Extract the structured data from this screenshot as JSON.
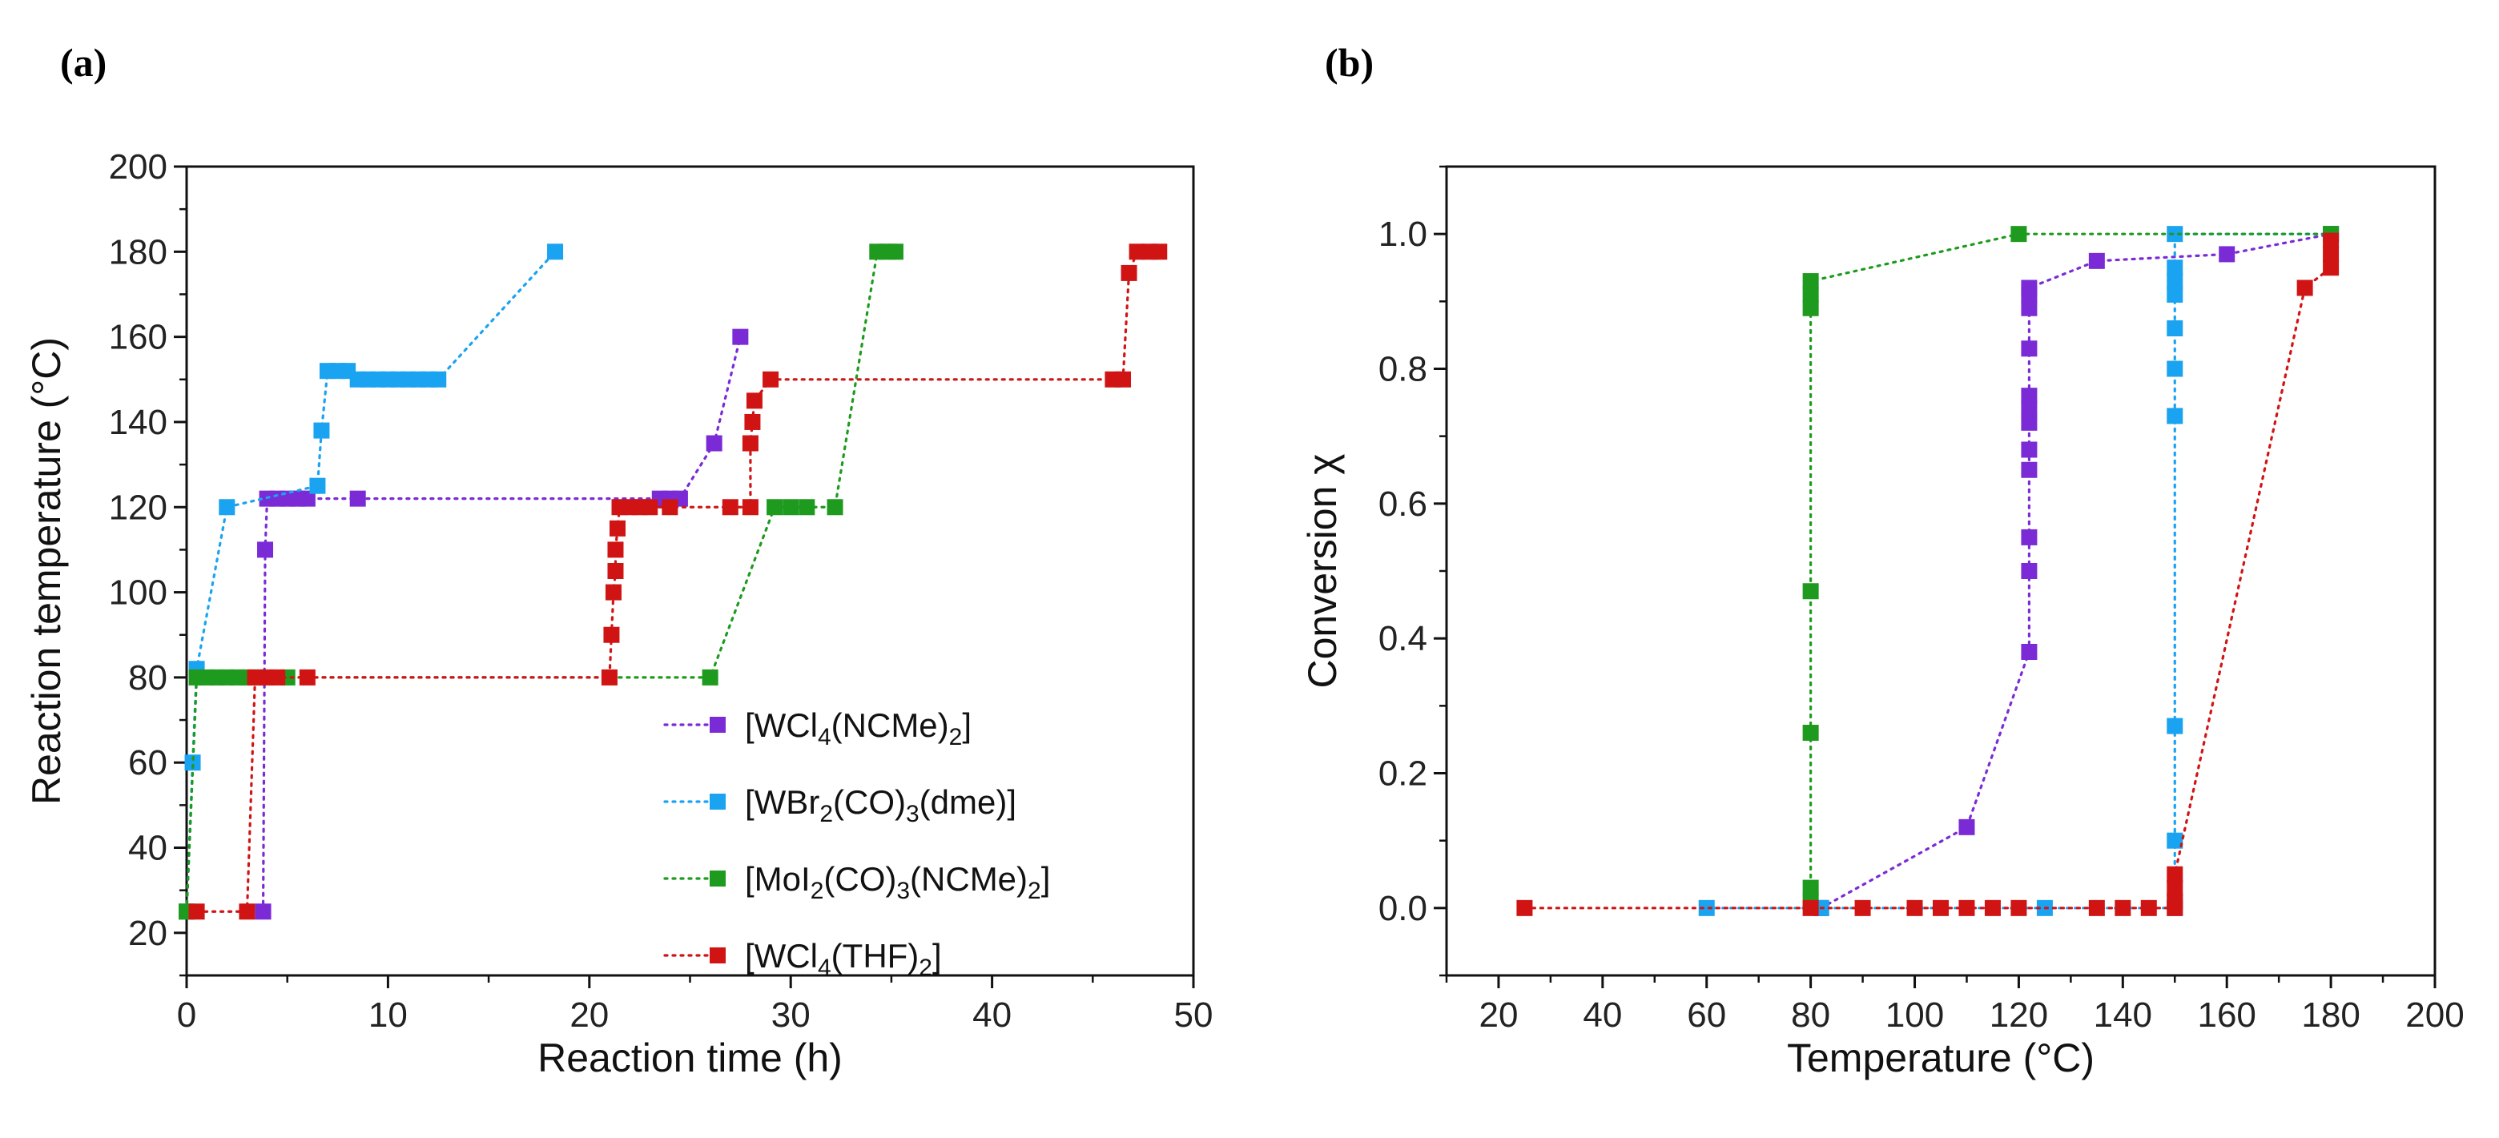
{
  "chart_data": [
    {
      "panel": "(a)",
      "type": "line",
      "xlabel": "Reaction time (h)",
      "ylabel": "Reaction temperature (°C)",
      "xlim": [
        0,
        50
      ],
      "ylim": [
        10,
        200
      ],
      "xticks": [
        0,
        10,
        20,
        30,
        40,
        50
      ],
      "yticks": [
        20,
        40,
        60,
        80,
        100,
        120,
        140,
        160,
        180,
        200
      ],
      "legend_position": "bottom-right",
      "series": [
        {
          "name": "[WCl4(NCMe)2]",
          "legend": [
            "[WCl",
            "4",
            "(NCMe)",
            "2",
            "]"
          ],
          "color": "#7b2bd6",
          "points": [
            [
              3.8,
              25
            ],
            [
              3.9,
              110
            ],
            [
              4.0,
              122
            ],
            [
              4.5,
              122
            ],
            [
              5.0,
              122
            ],
            [
              5.5,
              122
            ],
            [
              6.0,
              122
            ],
            [
              8.5,
              122
            ],
            [
              23.5,
              122
            ],
            [
              24.0,
              122
            ],
            [
              24.5,
              122
            ],
            [
              26.2,
              135
            ],
            [
              27.5,
              160
            ]
          ]
        },
        {
          "name": "[WBr2(CO)3(dme)]",
          "legend": [
            "[WBr",
            "2",
            "(CO)",
            "3",
            "(dme)]"
          ],
          "color": "#1aa3f0",
          "points": [
            [
              0,
              25
            ],
            [
              0.3,
              60
            ],
            [
              0.5,
              82
            ],
            [
              2.0,
              120
            ],
            [
              6.5,
              125
            ],
            [
              6.7,
              138
            ],
            [
              7.0,
              152
            ],
            [
              7.5,
              152
            ],
            [
              8.0,
              152
            ],
            [
              8.5,
              150
            ],
            [
              9.0,
              150
            ],
            [
              9.5,
              150
            ],
            [
              10.0,
              150
            ],
            [
              10.5,
              150
            ],
            [
              11.0,
              150
            ],
            [
              11.5,
              150
            ],
            [
              12.0,
              150
            ],
            [
              12.5,
              150
            ],
            [
              18.3,
              180
            ]
          ]
        },
        {
          "name": "[MoI2(CO)3(NCMe)2]",
          "legend": [
            "[MoI",
            "2",
            "(CO)",
            "3",
            "(NCMe)",
            "2",
            "]"
          ],
          "color": "#1e9a1e",
          "points": [
            [
              0,
              25
            ],
            [
              0.5,
              80
            ],
            [
              1.0,
              80
            ],
            [
              1.5,
              80
            ],
            [
              2.0,
              80
            ],
            [
              2.5,
              80
            ],
            [
              3.0,
              80
            ],
            [
              3.5,
              80
            ],
            [
              5.0,
              80
            ],
            [
              26.0,
              80
            ],
            [
              29.2,
              120
            ],
            [
              30.0,
              120
            ],
            [
              30.8,
              120
            ],
            [
              32.2,
              120
            ],
            [
              34.3,
              180
            ],
            [
              34.8,
              180
            ],
            [
              35.2,
              180
            ]
          ]
        },
        {
          "name": "[WCl4(THF)2]",
          "legend": [
            "[WCl",
            "4",
            "(THF)",
            "2",
            "]"
          ],
          "color": "#d01414",
          "points": [
            [
              0.5,
              25
            ],
            [
              3.0,
              25
            ],
            [
              3.4,
              80
            ],
            [
              4.0,
              80
            ],
            [
              4.5,
              80
            ],
            [
              6.0,
              80
            ],
            [
              21.0,
              80
            ],
            [
              21.1,
              90
            ],
            [
              21.2,
              100
            ],
            [
              21.3,
              105
            ],
            [
              21.3,
              110
            ],
            [
              21.4,
              115
            ],
            [
              21.5,
              120
            ],
            [
              22.0,
              120
            ],
            [
              22.5,
              120
            ],
            [
              23.0,
              120
            ],
            [
              24.0,
              120
            ],
            [
              27.0,
              120
            ],
            [
              28.0,
              120
            ],
            [
              28.0,
              135
            ],
            [
              28.1,
              140
            ],
            [
              28.2,
              145
            ],
            [
              29.0,
              150
            ],
            [
              46.0,
              150
            ],
            [
              46.5,
              150
            ],
            [
              46.8,
              175
            ],
            [
              47.2,
              180
            ],
            [
              47.8,
              180
            ],
            [
              48.3,
              180
            ]
          ]
        }
      ]
    },
    {
      "panel": "(b)",
      "type": "line",
      "xlabel": "Temperature (°C)",
      "ylabel": "Conversion  χ",
      "xlim": [
        10,
        200
      ],
      "ylim": [
        -0.1,
        1.1
      ],
      "xticks": [
        20,
        40,
        60,
        80,
        100,
        120,
        140,
        160,
        180,
        200
      ],
      "yticks": [
        0.0,
        0.2,
        0.4,
        0.6,
        0.8,
        1.0
      ],
      "series": [
        {
          "name": "[WCl4(NCMe)2]",
          "color": "#7b2bd6",
          "points": [
            [
              82,
              0
            ],
            [
              110,
              0.12
            ],
            [
              122,
              0.38
            ],
            [
              122,
              0.5
            ],
            [
              122,
              0.55
            ],
            [
              122,
              0.65
            ],
            [
              122,
              0.68
            ],
            [
              122,
              0.72
            ],
            [
              122,
              0.74
            ],
            [
              122,
              0.76
            ],
            [
              122,
              0.83
            ],
            [
              122,
              0.89
            ],
            [
              122,
              0.91
            ],
            [
              122,
              0.92
            ],
            [
              135,
              0.96
            ],
            [
              160,
              0.97
            ],
            [
              180,
              1.0
            ]
          ]
        },
        {
          "name": "[WBr2(CO)3(dme)]",
          "color": "#1aa3f0",
          "points": [
            [
              60,
              0
            ],
            [
              82,
              0
            ],
            [
              125,
              0
            ],
            [
              150,
              0
            ],
            [
              150,
              0.01
            ],
            [
              150,
              0.1
            ],
            [
              150,
              0.27
            ],
            [
              150,
              0.73
            ],
            [
              150,
              0.8
            ],
            [
              150,
              0.86
            ],
            [
              150,
              0.91
            ],
            [
              150,
              0.93
            ],
            [
              150,
              0.95
            ],
            [
              150,
              1.0
            ],
            [
              180,
              1.0
            ]
          ]
        },
        {
          "name": "[MoI2(CO)3(NCMe)2]",
          "color": "#1e9a1e",
          "points": [
            [
              80,
              0.01
            ],
            [
              80,
              0.03
            ],
            [
              80,
              0.26
            ],
            [
              80,
              0.47
            ],
            [
              80,
              0.89
            ],
            [
              80,
              0.91
            ],
            [
              80,
              0.93
            ],
            [
              120,
              1.0
            ],
            [
              180,
              1.0
            ]
          ]
        },
        {
          "name": "[WCl4(THF)2]",
          "color": "#d01414",
          "points": [
            [
              25,
              0
            ],
            [
              80,
              0
            ],
            [
              90,
              0
            ],
            [
              100,
              0
            ],
            [
              105,
              0
            ],
            [
              110,
              0
            ],
            [
              115,
              0
            ],
            [
              120,
              0
            ],
            [
              135,
              0
            ],
            [
              140,
              0
            ],
            [
              145,
              0
            ],
            [
              150,
              0
            ],
            [
              150,
              0.01
            ],
            [
              150,
              0.03
            ],
            [
              150,
              0.05
            ],
            [
              175,
              0.92
            ],
            [
              180,
              0.95
            ],
            [
              180,
              0.97
            ],
            [
              180,
              0.99
            ]
          ]
        }
      ]
    }
  ]
}
